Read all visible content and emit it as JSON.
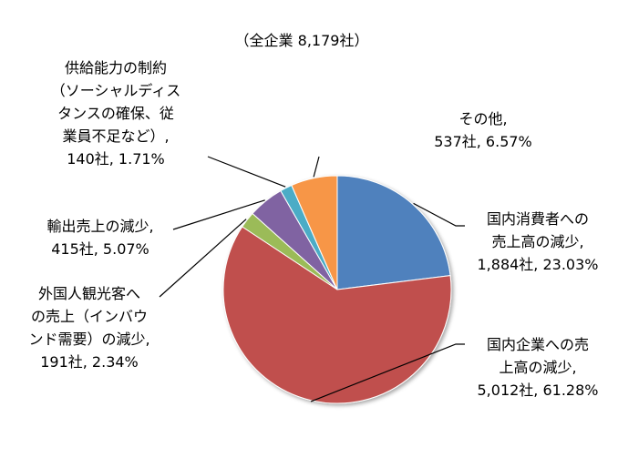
{
  "chart_data": {
    "type": "pie",
    "subtitle": "（全企業 8,179社）",
    "total_companies": 8179,
    "slices": [
      {
        "name": "国内消費者への売上高の減少",
        "count": 1884,
        "percent": 23.03,
        "color": "#4F81BD",
        "label_lines": [
          "国内消費者への",
          "売上高の減少,",
          "1,884社, 23.03%"
        ]
      },
      {
        "name": "国内企業への売上高の減少",
        "count": 5012,
        "percent": 61.28,
        "color": "#C0504D",
        "label_lines": [
          "国内企業への売",
          "上高の減少,",
          "5,012社, 61.28%"
        ]
      },
      {
        "name": "外国人観光客への売上（インバウンド需要）の減少",
        "count": 191,
        "percent": 2.34,
        "color": "#9BBB59",
        "label_lines": [
          "外国人観光客へ",
          "の売上（インバウ",
          "ンド需要）の減少,",
          "191社, 2.34%"
        ]
      },
      {
        "name": "輸出売上の減少",
        "count": 415,
        "percent": 5.07,
        "color": "#8064A2",
        "label_lines": [
          "輸出売上の減少,",
          "415社, 5.07%"
        ]
      },
      {
        "name": "供給能力の制約（ソーシャルディスタンスの確保、従業員不足など）",
        "count": 140,
        "percent": 1.71,
        "color": "#4BACC6",
        "label_lines": [
          "供給能力の制約",
          "（ソーシャルディス",
          "タンスの確保、従",
          "業員不足など）,",
          "140社, 1.71%"
        ]
      },
      {
        "name": "その他",
        "count": 537,
        "percent": 6.57,
        "color": "#F79646",
        "label_lines": [
          "その他,",
          "537社, 6.57%"
        ]
      }
    ],
    "legend": "none",
    "grid": false
  }
}
